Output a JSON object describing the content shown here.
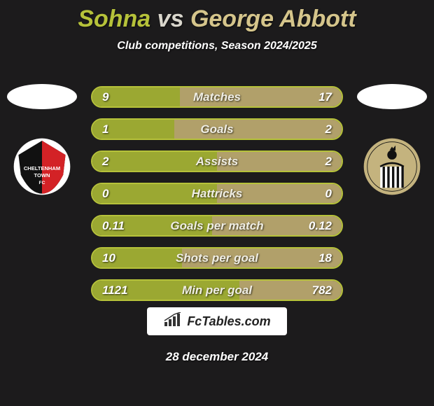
{
  "title": {
    "player1": "Sohna",
    "vs": "vs",
    "player2": "George Abbott"
  },
  "subtitle": "Club competitions, Season 2024/2025",
  "colors": {
    "p1_border": "#b6c23a",
    "p1_fill": "#9ba832",
    "p2_border": "#d5c58b",
    "p2_fill": "#b1a06a",
    "track": "#4a4a36"
  },
  "stats": [
    {
      "label": "Matches",
      "v1": "9",
      "v2": "17",
      "pct1": 35
    },
    {
      "label": "Goals",
      "v1": "1",
      "v2": "2",
      "pct1": 33
    },
    {
      "label": "Assists",
      "v1": "2",
      "v2": "2",
      "pct1": 50
    },
    {
      "label": "Hattricks",
      "v1": "0",
      "v2": "0",
      "pct1": 50
    },
    {
      "label": "Goals per match",
      "v1": "0.11",
      "v2": "0.12",
      "pct1": 48
    },
    {
      "label": "Shots per goal",
      "v1": "10",
      "v2": "18",
      "pct1": 36
    },
    {
      "label": "Min per goal",
      "v1": "1121",
      "v2": "782",
      "pct1": 59
    }
  ],
  "badge_text": "FcTables.com",
  "date": "28 december 2024"
}
